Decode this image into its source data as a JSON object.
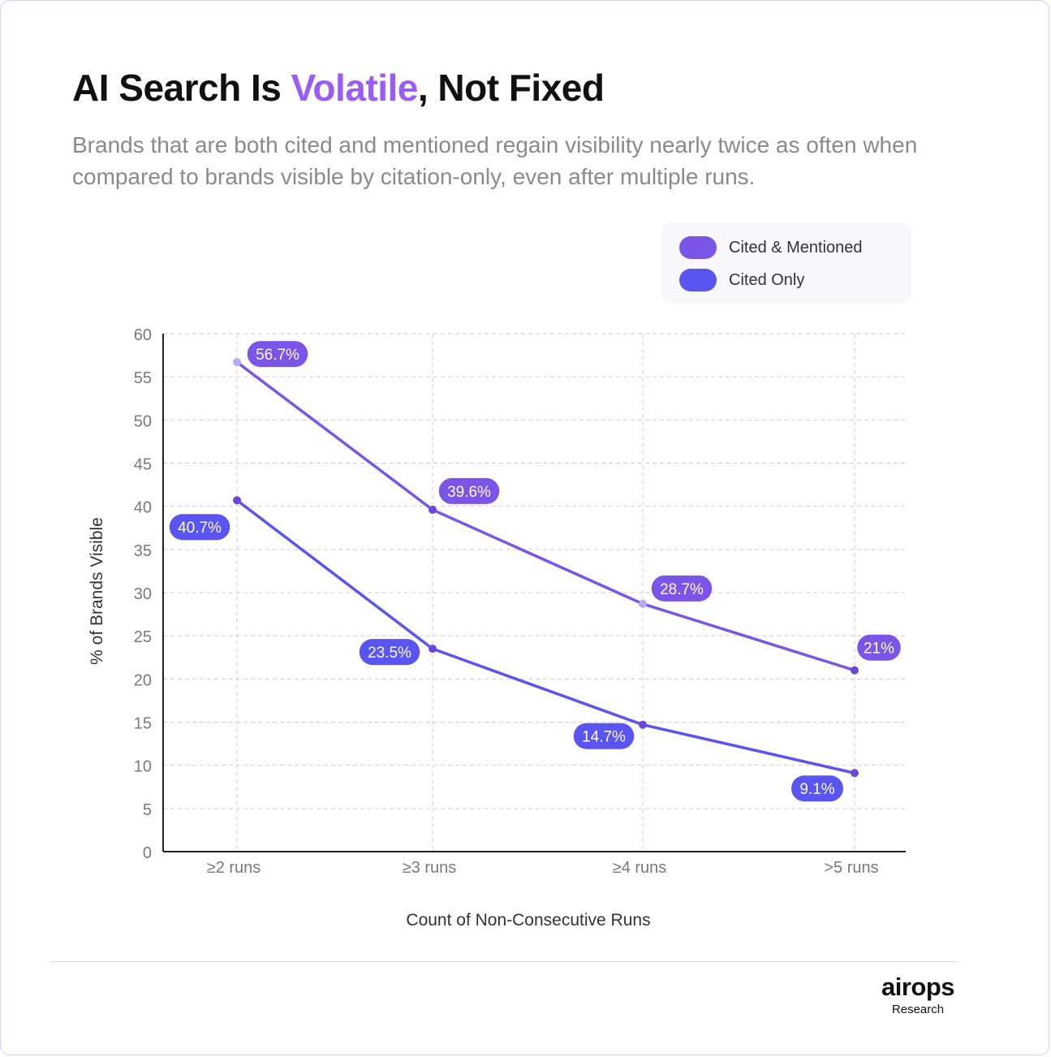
{
  "header": {
    "title_pre": "AI Search Is ",
    "title_accent": "Volatile",
    "title_post": ", Not Fixed",
    "subtitle": "Brands that are both cited and mentioned regain visibility nearly twice as often when compared to brands visible by citation-only, even after multiple runs."
  },
  "legend": {
    "items": [
      {
        "label": "Cited & Mentioned",
        "color": "#7b54e8"
      },
      {
        "label": "Cited Only",
        "color": "#5a54f0"
      }
    ]
  },
  "chart_data": {
    "type": "line",
    "title": "AI Search Is Volatile, Not Fixed",
    "xlabel": "Count of Non-Consecutive Runs",
    "ylabel": "% of Brands Visible",
    "categories": [
      "≥2 runs",
      "≥3 runs",
      "≥4 runs",
      ">5 runs"
    ],
    "ylim": [
      0,
      60
    ],
    "yticks": [
      0,
      5,
      10,
      15,
      20,
      25,
      30,
      35,
      40,
      45,
      50,
      55,
      60
    ],
    "grid": true,
    "legend_position": "top-right",
    "series": [
      {
        "name": "Cited & Mentioned",
        "color": "#7b54e8",
        "values": [
          56.7,
          39.6,
          28.7,
          21
        ],
        "labels": [
          "56.7%",
          "39.6%",
          "28.7%",
          "21%"
        ]
      },
      {
        "name": "Cited Only",
        "color": "#5a54f0",
        "values": [
          40.7,
          23.5,
          14.7,
          9.1
        ],
        "labels": [
          "40.7%",
          "23.5%",
          "14.7%",
          "9.1%"
        ]
      }
    ]
  },
  "footer": {
    "logo": "airops",
    "sub": "Research"
  }
}
